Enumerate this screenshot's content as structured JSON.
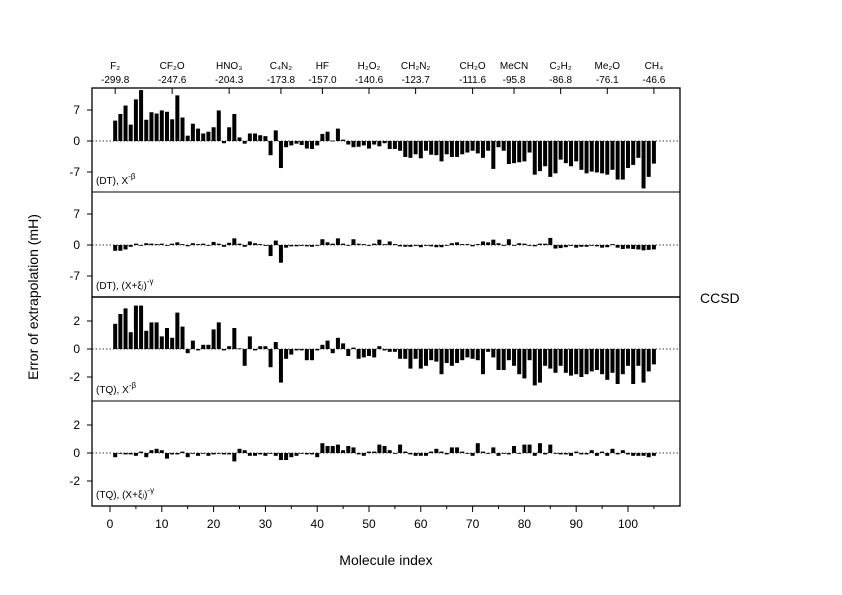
{
  "chart_data": {
    "type": "bar",
    "title": "",
    "xlabel": "Molecule index",
    "ylabel": "Error of extrapolation (mH)",
    "side_label": "CCSD",
    "xlim": [
      -3,
      110
    ],
    "x_ticks": [
      0,
      10,
      20,
      30,
      40,
      50,
      60,
      70,
      80,
      90,
      100
    ],
    "top_annotations": [
      {
        "index": 1,
        "molecule": "F₂",
        "value": "-299.8"
      },
      {
        "index": 12,
        "molecule": "CF₂O",
        "value": "-247.6"
      },
      {
        "index": 23,
        "molecule": "HNO₃",
        "value": "-204.3"
      },
      {
        "index": 33,
        "molecule": "C₄N₂",
        "value": "-173.8"
      },
      {
        "index": 41,
        "molecule": "HF",
        "value": "-157.0"
      },
      {
        "index": 50,
        "molecule": "H₂O₂",
        "value": "-140.6"
      },
      {
        "index": 59,
        "molecule": "CH₂N₂",
        "value": "-123.7"
      },
      {
        "index": 70,
        "molecule": "CH₂O",
        "value": "-111.6"
      },
      {
        "index": 78,
        "molecule": "MeCN",
        "value": "-95.8"
      },
      {
        "index": 87,
        "molecule": "C₂H₂",
        "value": "-86.8"
      },
      {
        "index": 96,
        "molecule": "Me₂O",
        "value": "-76.1"
      },
      {
        "index": 105,
        "molecule": "CH₄",
        "value": "-46.6"
      }
    ],
    "panels": [
      {
        "label": "(DT), X",
        "label_sup": "-β",
        "ylim": [
          -12,
          12
        ],
        "y_ticks": [
          7,
          0,
          -7
        ],
        "values": [
          4.6,
          6.1,
          8.0,
          3.7,
          9.4,
          11.5,
          4.8,
          6.5,
          6.2,
          6.9,
          6.6,
          4.9,
          10.3,
          5.3,
          1.2,
          3.9,
          2.8,
          1.7,
          2.1,
          3.1,
          6.9,
          -0.5,
          3.1,
          6.1,
          0.8,
          -0.6,
          1.7,
          1.7,
          1.3,
          1.1,
          -3.2,
          2.4,
          -6.1,
          -1.4,
          -1.0,
          -0.6,
          -0.9,
          -1.7,
          -1.8,
          -1.0,
          1.6,
          2.1,
          0.1,
          2.8,
          0.3,
          -0.8,
          -1.4,
          -1.3,
          -1.0,
          -1.7,
          -0.8,
          -1.2,
          -0.5,
          -1.8,
          -1.8,
          -2.2,
          -3.6,
          -3.8,
          -3.0,
          -3.9,
          -2.2,
          -3.1,
          -3.2,
          -4.6,
          -3.0,
          -3.6,
          -3.6,
          -3.0,
          -2.6,
          -2.2,
          -2.8,
          -3.8,
          -2.2,
          -6.3,
          -1.4,
          -2.2,
          -5.2,
          -5.0,
          -4.8,
          -4.6,
          -2.6,
          -7.6,
          -6.8,
          -5.7,
          -8.1,
          -7.3,
          -4.2,
          -5.0,
          -5.7,
          -4.6,
          -6.5,
          -7.3,
          -6.9,
          -7.1,
          -7.3,
          -7.6,
          -6.5,
          -8.7,
          -8.7,
          -6.1,
          -5.4,
          -3.8,
          -10.7,
          -8.1,
          -5.1
        ]
      },
      {
        "label": "(DT), (X+ξₗ)",
        "label_sup": "-γ",
        "ylim": [
          -12,
          12
        ],
        "y_ticks": [
          7,
          0,
          -7
        ],
        "values": [
          -1.3,
          -1.3,
          -1.0,
          -0.4,
          0.3,
          0.0,
          0.4,
          0.3,
          0.2,
          0.3,
          0.0,
          0.3,
          0.6,
          0.2,
          -0.3,
          0.4,
          0.2,
          0.3,
          0.0,
          0.7,
          0.3,
          -0.4,
          0.5,
          1.5,
          0.3,
          -0.4,
          0.8,
          0.4,
          0.2,
          -0.2,
          -2.5,
          1.0,
          -4.0,
          -0.6,
          -0.3,
          -0.3,
          -0.2,
          -0.3,
          -0.4,
          0.0,
          1.3,
          0.6,
          0.3,
          1.5,
          0.3,
          0.0,
          1.3,
          0.3,
          0.2,
          -0.1,
          0.3,
          1.2,
          0.2,
          0.8,
          0.2,
          -0.3,
          -0.4,
          -0.4,
          -0.2,
          -0.5,
          0.0,
          -0.3,
          -0.5,
          -0.5,
          0.0,
          0.4,
          0.6,
          0.2,
          0.2,
          -0.3,
          0.2,
          0.8,
          0.6,
          1.2,
          0.4,
          -0.2,
          1.3,
          0.0,
          0.4,
          0.3,
          0.0,
          -0.3,
          0.3,
          0.3,
          1.6,
          -0.8,
          -0.7,
          -0.5,
          -0.2,
          -0.6,
          -0.4,
          -0.4,
          0.0,
          -0.3,
          -0.6,
          -0.5,
          0.2,
          -0.6,
          -0.9,
          -0.8,
          -0.9,
          -1.0,
          -1.2,
          -1.1,
          -1.0
        ]
      },
      {
        "label": "(TQ), X",
        "label_sup": "-β",
        "ylim": [
          -3.5,
          3.5
        ],
        "y_ticks": [
          2,
          0,
          -2
        ],
        "values": [
          1.8,
          2.5,
          2.9,
          1.2,
          3.1,
          3.1,
          1.3,
          1.9,
          1.9,
          0.9,
          1.5,
          0.8,
          2.6,
          1.6,
          -0.3,
          0.6,
          -0.1,
          0.3,
          0.3,
          1.4,
          1.9,
          -0.1,
          0.2,
          1.5,
          0.05,
          -1.2,
          0.9,
          -0.1,
          0.2,
          0.2,
          -1.3,
          0.5,
          -2.4,
          -0.7,
          -0.4,
          -0.1,
          -0.1,
          -0.8,
          -0.8,
          -0.1,
          0.3,
          0.6,
          -0.3,
          0.8,
          0.4,
          -0.5,
          0.1,
          -0.7,
          -0.6,
          -0.5,
          -0.6,
          0.2,
          -0.1,
          -0.2,
          -0.2,
          -0.7,
          -0.7,
          -1.4,
          -0.7,
          -1.4,
          -1.2,
          -0.8,
          -0.9,
          -1.8,
          -1.0,
          -1.2,
          -1.0,
          -0.8,
          -0.6,
          -0.7,
          -0.8,
          -1.8,
          -0.2,
          -0.6,
          -1.5,
          -1.5,
          -0.8,
          -1.2,
          -1.8,
          -2.1,
          -0.8,
          -2.6,
          -2.4,
          -1.2,
          -1.4,
          -1.7,
          -1.2,
          -1.7,
          -1.9,
          -1.8,
          -2.0,
          -1.8,
          -1.6,
          -1.5,
          -1.8,
          -2.2,
          -1.7,
          -2.5,
          -1.8,
          -1.2,
          -2.5,
          -1.2,
          -2.4,
          -1.6,
          -1.1
        ]
      },
      {
        "label": "(TQ), (X+ξₗ)",
        "label_sup": "-γ",
        "ylim": [
          -3.5,
          3.5
        ],
        "y_ticks": [
          2,
          0,
          -2
        ],
        "values": [
          -0.3,
          0.0,
          -0.1,
          -0.1,
          -0.2,
          0.1,
          -0.3,
          0.2,
          0.3,
          0.2,
          -0.4,
          -0.1,
          -0.1,
          0.1,
          -0.3,
          0.0,
          -0.2,
          0.0,
          -0.2,
          -0.1,
          0.0,
          -0.1,
          -0.1,
          -0.6,
          0.3,
          0.2,
          -0.2,
          -0.2,
          -0.1,
          -0.2,
          0.0,
          -0.2,
          -0.5,
          -0.5,
          -0.3,
          -0.2,
          0.0,
          -0.1,
          -0.1,
          -0.3,
          0.7,
          0.5,
          0.5,
          0.6,
          0.2,
          0.5,
          0.4,
          -0.1,
          -0.2,
          0.1,
          0.1,
          0.6,
          0.5,
          0.2,
          0.0,
          0.6,
          0.1,
          -0.1,
          -0.2,
          -0.2,
          -0.2,
          0.1,
          0.3,
          0.1,
          -0.1,
          0.4,
          0.4,
          0.1,
          0.0,
          -0.2,
          0.7,
          0.1,
          0.0,
          0.4,
          -0.2,
          0.0,
          -0.1,
          0.5,
          0.0,
          0.6,
          0.6,
          -0.2,
          0.7,
          -0.1,
          0.6,
          0.0,
          -0.1,
          -0.1,
          -0.2,
          0.1,
          -0.1,
          -0.1,
          0.2,
          -0.2,
          0.1,
          -0.2,
          0.3,
          -0.1,
          0.2,
          -0.1,
          -0.2,
          -0.2,
          -0.2,
          -0.3,
          -0.2
        ]
      }
    ]
  }
}
